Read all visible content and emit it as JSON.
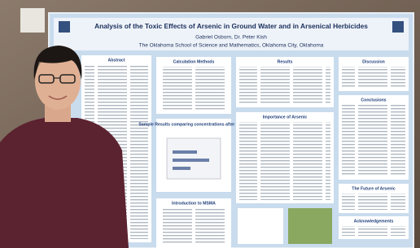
{
  "poster": {
    "title": "Analysis of the Toxic Effects of Arsenic in Ground Water and in Arsenical Herbicides",
    "authors": "Gabriel Osborn, Dr. Peter Kish",
    "affiliation": "The Oklahoma School of Science and Mathematics, Oklahoma City, Oklahoma",
    "sections": [
      "Abstract",
      "Calculation Methods",
      "Results",
      "Discussion",
      "Conclusions",
      "Sample Results comparing concentrations after MSMA",
      "Importance of Arsenic",
      "Introduction to MSMA",
      "The Future of Arsenic",
      "Acknowledgements"
    ]
  }
}
